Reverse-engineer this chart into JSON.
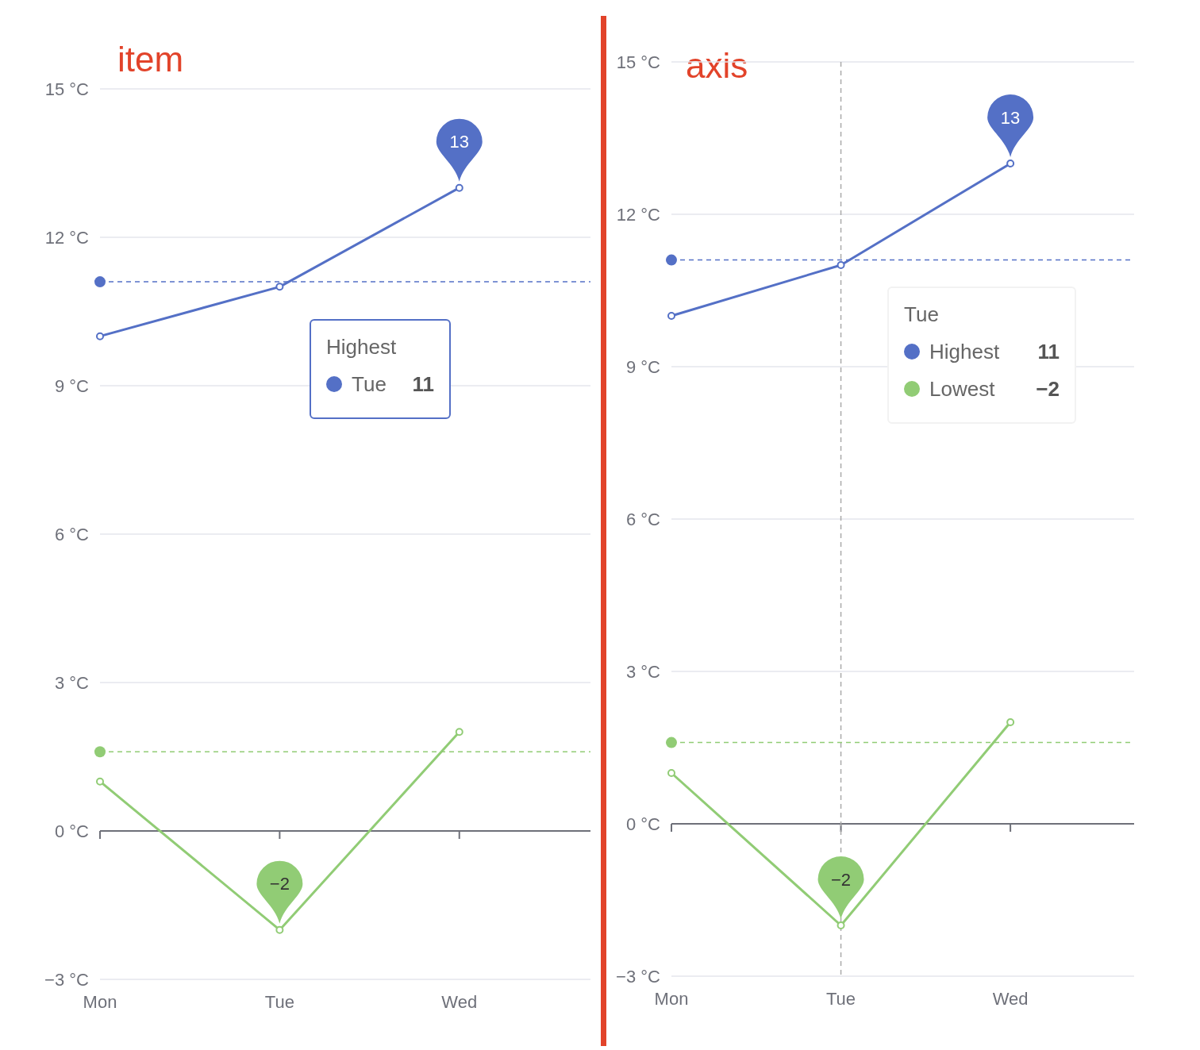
{
  "chart_data": [
    {
      "type": "line",
      "title": "item",
      "categories": [
        "Mon",
        "Tue",
        "Wed"
      ],
      "series": [
        {
          "name": "Highest",
          "color": "#5470c6",
          "values": [
            10,
            11,
            13
          ]
        },
        {
          "color": "#91cc75",
          "values": [
            1,
            -2,
            2
          ]
        }
      ],
      "ylim": [
        -3,
        15
      ],
      "yticks": [
        {
          "value": -3,
          "label": "−3 °C"
        },
        {
          "value": 0,
          "label": "0 °C"
        },
        {
          "value": 3,
          "label": "3 °C"
        },
        {
          "value": 6,
          "label": "6 °C"
        },
        {
          "value": 9,
          "label": "9 °C"
        },
        {
          "value": 12,
          "label": "12 °C"
        },
        {
          "value": 15,
          "label": "15 °C"
        }
      ],
      "grid": "y",
      "legend": "top",
      "marker": "circle",
      "line_style": "solid",
      "ref_lines": [
        {
          "axis": "y",
          "value": 11.1,
          "color": "#5470c6",
          "line_style": "dashed"
        },
        {
          "axis": "y",
          "value": 1.6,
          "color": "#91cc75",
          "line_style": "dashed"
        }
      ],
      "annotations": [
        {
          "text": "13",
          "x": "Wed",
          "y": 13
        },
        {
          "text": "−2",
          "x": "Tue",
          "y": -2
        },
        "Tue",
        "11"
      ]
    },
    {
      "type": "line",
      "title": "axis",
      "categories": [
        "Mon",
        "Tue",
        "Wed"
      ],
      "series": [
        {
          "name": "Highest",
          "color": "#5470c6",
          "values": [
            10,
            11,
            13
          ]
        },
        {
          "name": "Lowest",
          "color": "#91cc75",
          "values": [
            1,
            -2,
            2
          ]
        }
      ],
      "ylim": [
        -3,
        15
      ],
      "yticks": [
        {
          "value": -3,
          "label": "−3 °C"
        },
        {
          "value": 0,
          "label": "0 °C"
        },
        {
          "value": 3,
          "label": "3 °C"
        },
        {
          "value": 6,
          "label": "6 °C"
        },
        {
          "value": 9,
          "label": "9 °C"
        },
        {
          "value": 12,
          "label": "12 °C"
        },
        {
          "value": 15,
          "label": "15 °C"
        }
      ],
      "grid": "y",
      "legend": "top right",
      "marker": "circle",
      "line_style": "solid",
      "ref_lines": [
        {
          "axis": "x",
          "value": "Tue",
          "color": "#aaaaaa",
          "line_style": "dashed"
        },
        {
          "axis": "y",
          "value": 11.1,
          "color": "#5470c6",
          "line_style": "dashed"
        },
        {
          "axis": "y",
          "value": 1.6,
          "color": "#91cc75",
          "line_style": "dashed"
        }
      ],
      "annotations": [
        {
          "text": "13",
          "x": "Wed",
          "y": 13
        },
        {
          "text": "−2",
          "x": "Tue",
          "y": -2
        },
        "Tue",
        "11",
        "−2"
      ]
    }
  ]
}
